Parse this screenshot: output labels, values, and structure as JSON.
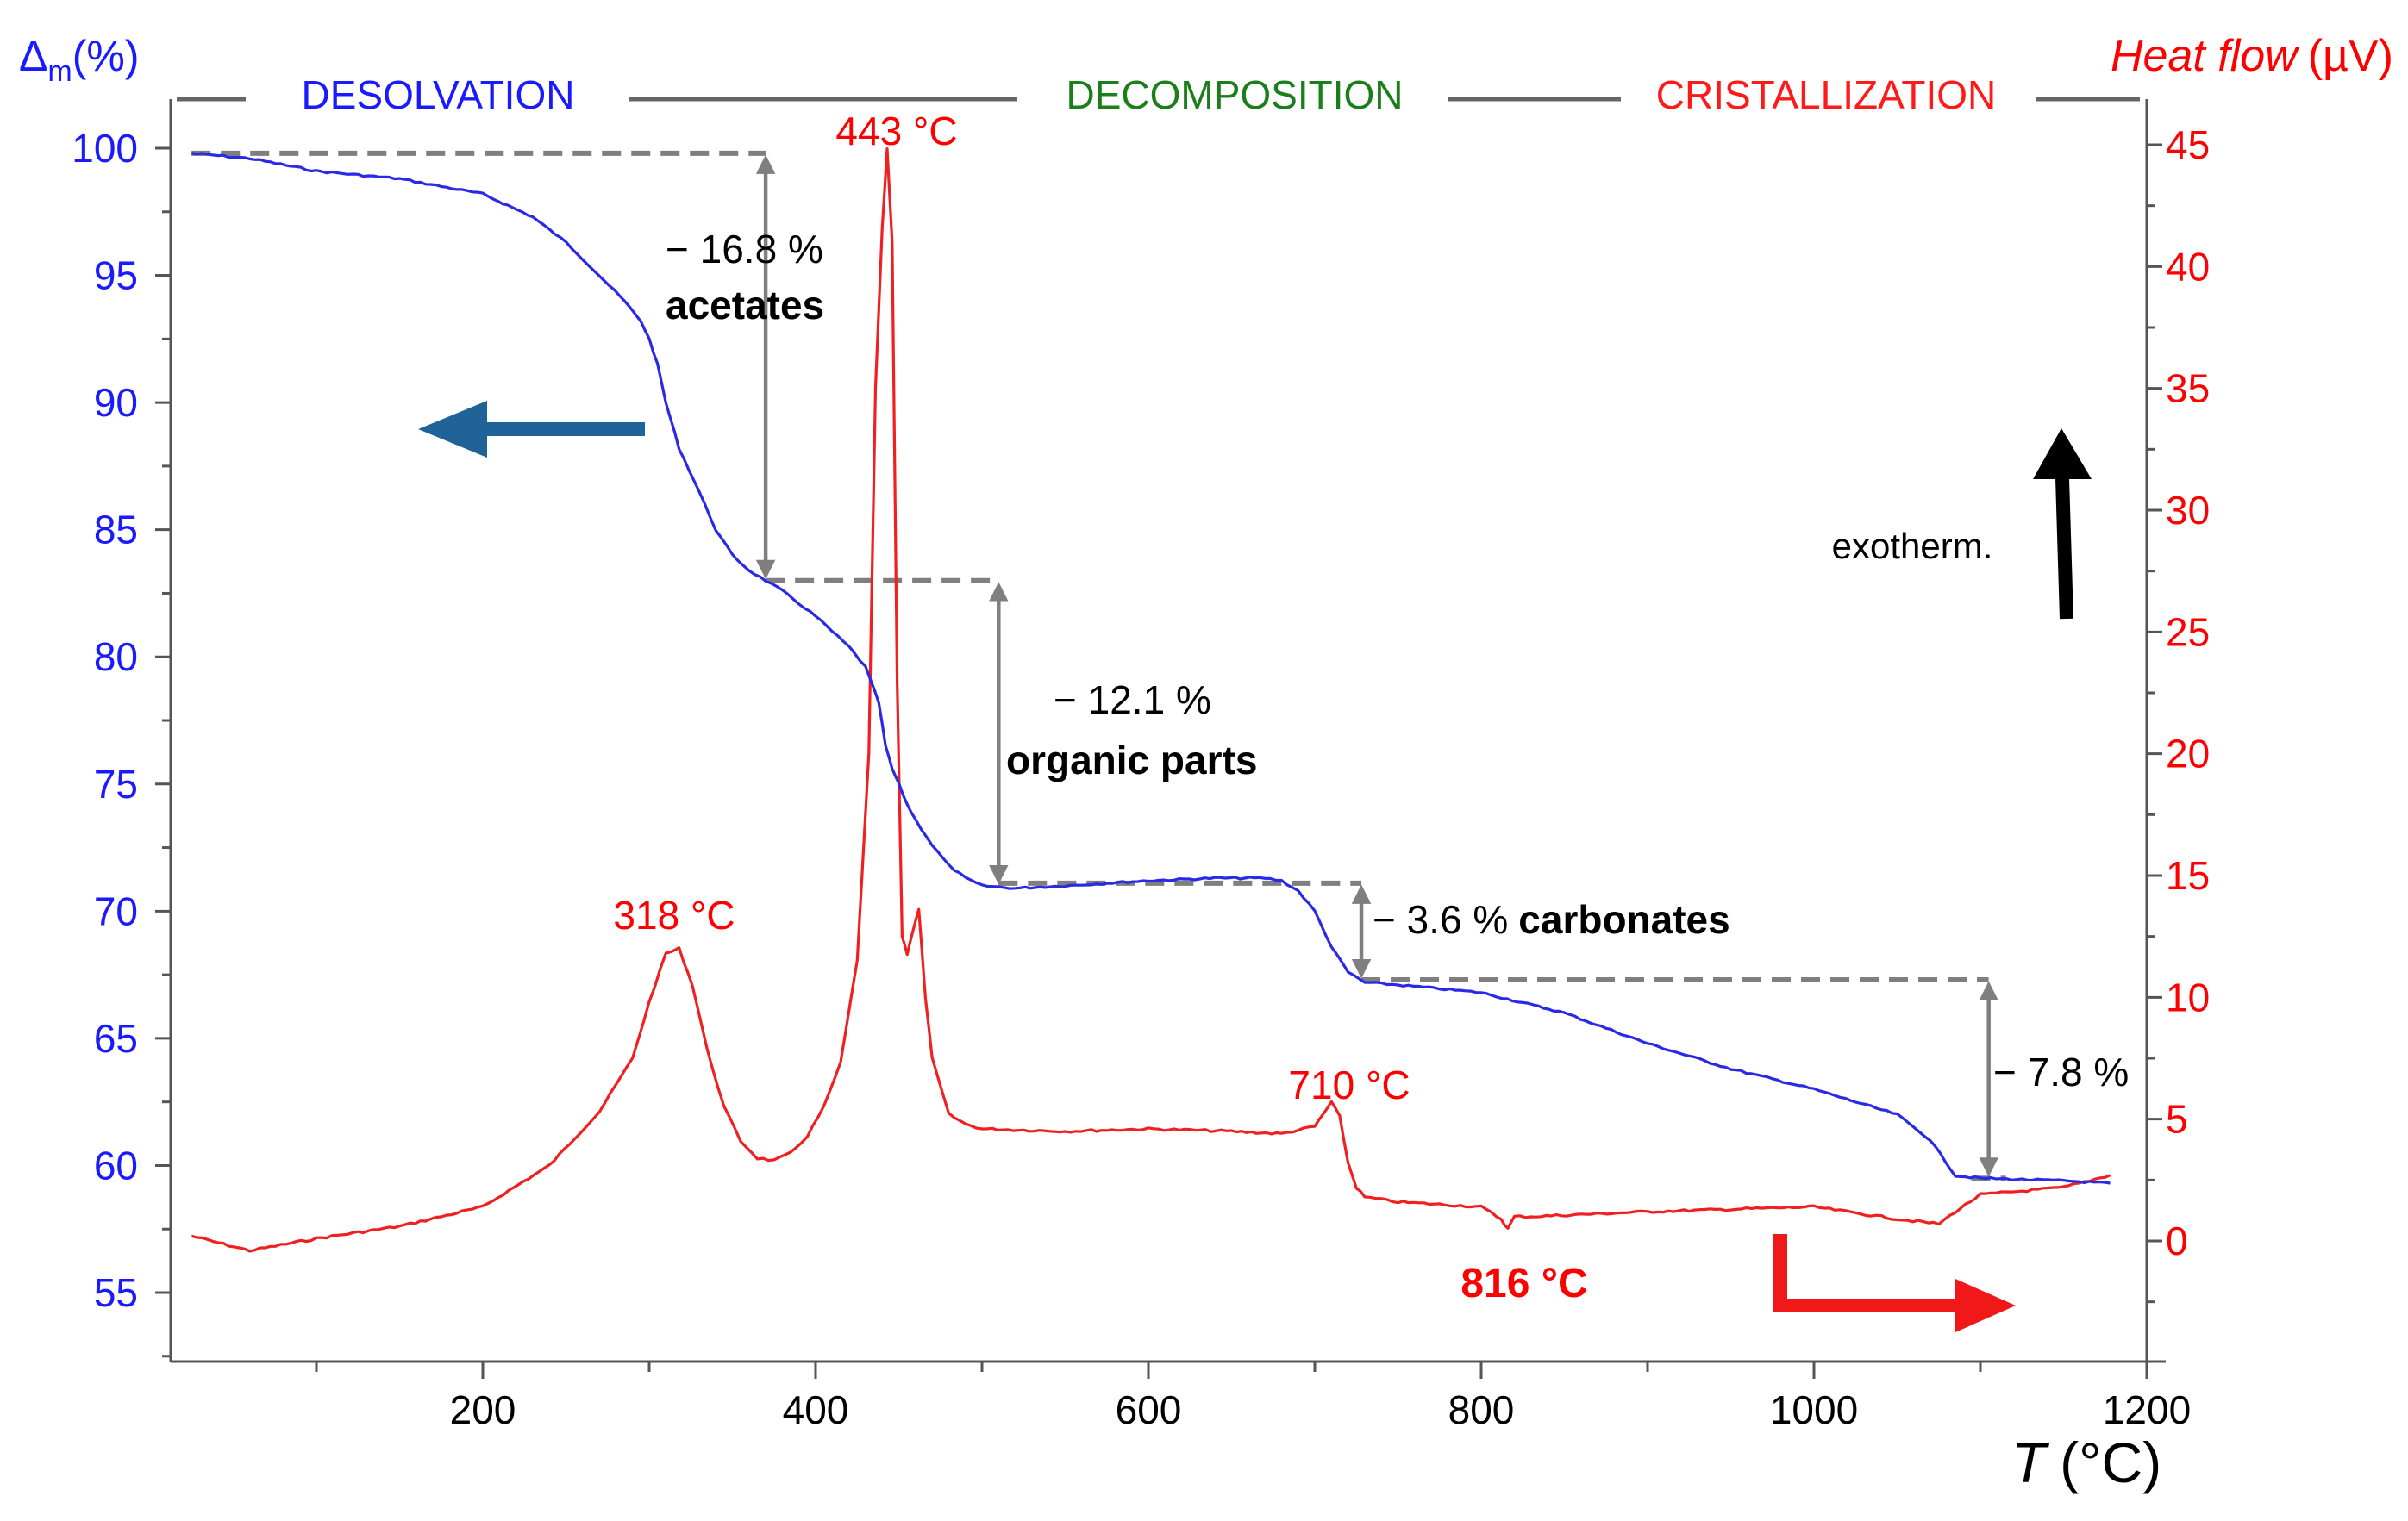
{
  "chart_data": {
    "type": "line",
    "title": "",
    "xlabel": "T (°C)",
    "xlabel_italic": "T",
    "xlabel_unit": "(°C)",
    "xlim": [
      20,
      1200
    ],
    "xticks": [
      200,
      400,
      600,
      800,
      1000,
      1200
    ],
    "ylabel_left": "Δm (%)",
    "ylabel_left_main": "Δ",
    "ylabel_left_sub": "m",
    "ylabel_left_unit": "(%)",
    "ylim_left": [
      52,
      101.5
    ],
    "yticks_left": [
      55,
      60,
      65,
      70,
      75,
      80,
      85,
      90,
      95,
      100
    ],
    "ylabel_right": "Heat flow (µV)",
    "ylabel_right_italic": "Heat flow",
    "ylabel_right_unit": "(µV)",
    "ylim_right": [
      -5,
      46
    ],
    "yticks_right": [
      0,
      5,
      10,
      15,
      20,
      25,
      30,
      35,
      40,
      45
    ],
    "colors": {
      "mass": "#2a2ae6",
      "heat": "#f02020",
      "left_axis": "#1a1aff",
      "right_axis": "#ff0000",
      "green": "#1a7f1a",
      "dash": "#7f7f7f",
      "blue_arrow": "#1f6398",
      "black": "#000000"
    },
    "phases": [
      {
        "label": "DESOLVATION",
        "color": "#1a1aff"
      },
      {
        "label": "DECOMPOSITION",
        "color": "#1a7f1a"
      },
      {
        "label": "CRISTALLIZATION",
        "color": "#ff1a1a"
      }
    ],
    "series": [
      {
        "name": "mass loss",
        "axis": "left",
        "color": "#2a2ae6",
        "x": [
          25,
          60,
          100,
          150,
          200,
          230,
          250,
          270,
          285,
          295,
          300,
          305,
          310,
          318,
          330,
          340,
          350,
          360,
          370,
          380,
          400,
          420,
          430,
          438,
          442,
          446,
          450,
          455,
          460,
          470,
          480,
          490,
          500,
          520,
          550,
          600,
          640,
          670,
          680,
          690,
          700,
          710,
          720,
          730,
          750,
          800,
          850,
          900,
          950,
          1000,
          1050,
          1070,
          1085,
          1100,
          1150,
          1178
        ],
        "y": [
          99.8,
          99.6,
          99.1,
          98.8,
          98.2,
          97.3,
          96.3,
          95.0,
          94.0,
          93.2,
          92.5,
          91.5,
          90.0,
          88.2,
          86.5,
          85.0,
          84.0,
          83.4,
          83.0,
          82.6,
          81.6,
          80.4,
          79.6,
          78.2,
          76.5,
          75.6,
          75.0,
          74.2,
          73.6,
          72.6,
          71.8,
          71.3,
          71.0,
          70.9,
          71.0,
          71.2,
          71.3,
          71.3,
          71.2,
          70.8,
          70.0,
          68.6,
          67.6,
          67.2,
          67.1,
          66.8,
          66.0,
          64.8,
          63.8,
          63.0,
          62.0,
          61.0,
          59.6,
          59.5,
          59.4,
          59.3
        ]
      },
      {
        "name": "heat flow",
        "axis": "right",
        "color": "#f02020",
        "x": [
          25,
          60,
          100,
          150,
          200,
          240,
          270,
          290,
          300,
          310,
          318,
          326,
          335,
          345,
          355,
          365,
          375,
          385,
          395,
          405,
          415,
          425,
          432,
          436,
          440,
          443,
          446,
          449,
          452,
          455,
          458,
          462,
          466,
          470,
          480,
          490,
          500,
          550,
          600,
          650,
          680,
          700,
          705,
          710,
          715,
          720,
          725,
          730,
          750,
          800,
          812,
          816,
          820,
          830,
          900,
          950,
          1000,
          1050,
          1075,
          1085,
          1100,
          1150,
          1178
        ],
        "y": [
          0.2,
          -0.4,
          0.1,
          0.6,
          1.4,
          3.1,
          5.3,
          7.5,
          9.8,
          11.8,
          12.0,
          10.5,
          7.8,
          5.5,
          4.1,
          3.4,
          3.3,
          3.6,
          4.3,
          5.5,
          7.3,
          11.5,
          20,
          35,
          41.5,
          44.8,
          41,
          23,
          12.5,
          11.8,
          12.6,
          13.6,
          10,
          7.5,
          5.2,
          4.8,
          4.6,
          4.5,
          4.6,
          4.5,
          4.4,
          4.7,
          5.2,
          5.7,
          5.1,
          3.2,
          2.2,
          1.8,
          1.6,
          1.4,
          0.9,
          0.5,
          1.0,
          1.0,
          1.2,
          1.3,
          1.4,
          0.9,
          0.7,
          1.2,
          1.9,
          2.2,
          2.7
        ]
      }
    ],
    "annotations": [
      {
        "text": "443 °C",
        "x": 443,
        "axis": "right",
        "y": 45,
        "color": "#ff0000"
      },
      {
        "text": "318 °C",
        "x": 318,
        "axis": "right",
        "y": 12,
        "color": "#ff0000"
      },
      {
        "text": "710 °C",
        "x": 710,
        "axis": "right",
        "y": 5.7,
        "color": "#ff0000"
      },
      {
        "text": "816 °C",
        "x": 816,
        "axis": "right",
        "y": 0.5,
        "color": "#ff0000",
        "bold": true
      }
    ],
    "mass_steps": [
      {
        "value": "− 16.8 %",
        "label": "acetates",
        "x_from": 25,
        "x_arrow": 370,
        "y_top": 99.8,
        "y_bottom": 83.0
      },
      {
        "value": "− 12.1 %",
        "label": "organic parts",
        "x_from": 370,
        "x_arrow": 510,
        "y_top": 83.0,
        "y_bottom": 71.0
      },
      {
        "value": "− 3.6 %",
        "label": "carbonates",
        "x_from": 510,
        "x_arrow": 728,
        "y_top": 71.1,
        "y_bottom": 67.3
      },
      {
        "value": "− 7.8 %",
        "label": "",
        "x_from": 728,
        "x_arrow": 1105,
        "y_top": 67.3,
        "y_bottom": 59.5
      }
    ],
    "exotherm_label": "exotherm."
  }
}
